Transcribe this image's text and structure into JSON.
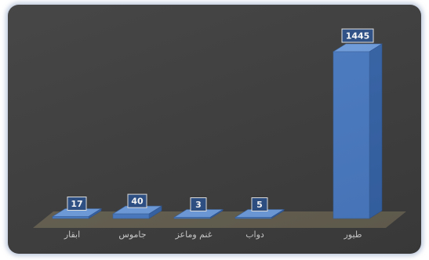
{
  "chart_data": {
    "type": "bar",
    "categories": [
      "ابقار",
      "جاموس",
      "غنم وماعز",
      "دواب",
      "طيور"
    ],
    "values": [
      17,
      40,
      3,
      5,
      1445
    ],
    "title": "",
    "xlabel": "",
    "ylabel": "",
    "ylim": [
      0,
      1445
    ],
    "grid": false,
    "legend": "none",
    "bar_color": "#4a7bc4",
    "background_color": "#3d3d3d"
  }
}
